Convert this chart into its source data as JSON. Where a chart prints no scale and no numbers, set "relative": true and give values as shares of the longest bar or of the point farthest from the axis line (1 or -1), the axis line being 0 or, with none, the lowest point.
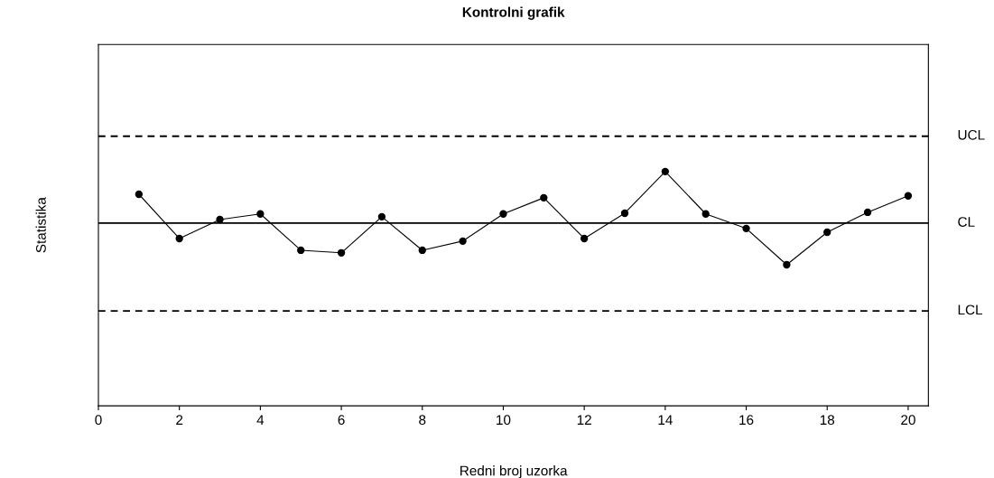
{
  "chart_data": {
    "type": "line",
    "title": "Kontrolni grafik",
    "xlabel": "Redni broj uzorka",
    "ylabel": "Statistika",
    "relative": true,
    "x": [
      1,
      2,
      3,
      4,
      5,
      6,
      7,
      8,
      9,
      10,
      11,
      12,
      13,
      14,
      15,
      16,
      17,
      18,
      19,
      20
    ],
    "series": [
      {
        "color": "#000000",
        "values": [
          0.903,
          0.714,
          0.795,
          0.819,
          0.664,
          0.653,
          0.807,
          0.664,
          0.703,
          0.819,
          0.888,
          0.714,
          0.822,
          1.0,
          0.819,
          0.757,
          0.602,
          0.741,
          0.826,
          0.896
        ]
      }
    ],
    "xlim": [
      0,
      20.5
    ],
    "xticks": [
      0,
      2,
      4,
      6,
      8,
      10,
      12,
      14,
      16,
      18,
      20
    ],
    "ref_lines": [
      {
        "axis": "y",
        "value": 1.151,
        "label": "UCL",
        "line_style": "dashed",
        "color": "#000000"
      },
      {
        "axis": "y",
        "value": 0.78,
        "label": "CL",
        "line_style": "solid",
        "color": "#000000"
      },
      {
        "axis": "y",
        "value": 0.405,
        "label": "LCL",
        "line_style": "dashed",
        "color": "#000000"
      }
    ],
    "marker": "circle",
    "line_style": "solid",
    "grid": false,
    "legend": false
  }
}
